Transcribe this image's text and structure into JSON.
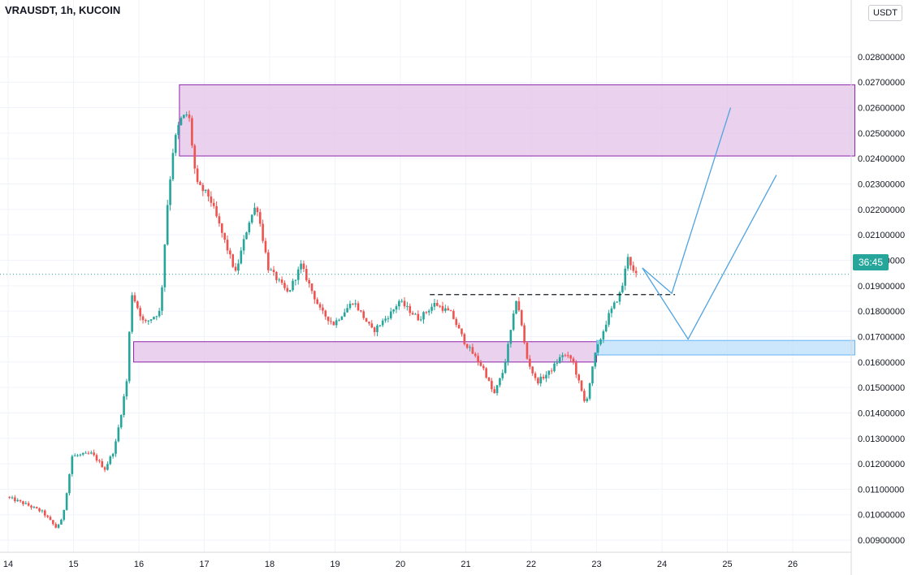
{
  "header": {
    "symbol_line": "VRAUSDT, 1h, KUCOIN"
  },
  "price_scale": {
    "currency": "USDT",
    "countdown": "36:45",
    "current_price": 0.01945
  },
  "colors": {
    "up": "#26a69a",
    "down": "#ef5350",
    "zone_purple_fill": "#e1bee7",
    "zone_purple_stroke": "#8e24aa",
    "zone_blue_fill": "#bbdefb",
    "zone_blue_stroke": "#64b5f6",
    "projection": "#4fa3e0",
    "grid": "#f0f3fa"
  },
  "chart_data": {
    "type": "candlestick",
    "title": "VRAUSDT, 1h, KUCOIN",
    "yaxis": {
      "ticks": [
        "0.00900000",
        "0.01000000",
        "0.01100000",
        "0.01200000",
        "0.01300000",
        "0.01400000",
        "0.01500000",
        "0.01600000",
        "0.01700000",
        "0.01800000",
        "0.01900000",
        "0.02000000",
        "0.02100000",
        "0.02200000",
        "0.02300000",
        "0.02400000",
        "0.02500000",
        "0.02600000",
        "0.02700000",
        "0.02800000"
      ],
      "range": [
        0.0083,
        0.0298
      ]
    },
    "xaxis": {
      "ticks": [
        "14",
        "15",
        "16",
        "17",
        "18",
        "19",
        "20",
        "21",
        "22",
        "23",
        "24",
        "25",
        "26"
      ],
      "range_days": [
        14.0,
        26.95
      ]
    },
    "price_anchors": [
      [
        14.0,
        0.0107
      ],
      [
        14.3,
        0.0104
      ],
      [
        14.55,
        0.0101
      ],
      [
        14.75,
        0.0095
      ],
      [
        14.85,
        0.0098
      ],
      [
        15.0,
        0.0123
      ],
      [
        15.3,
        0.0124
      ],
      [
        15.5,
        0.0118
      ],
      [
        15.65,
        0.0126
      ],
      [
        15.75,
        0.014
      ],
      [
        15.85,
        0.0155
      ],
      [
        15.9,
        0.0188
      ],
      [
        16.1,
        0.0175
      ],
      [
        16.35,
        0.018
      ],
      [
        16.45,
        0.022
      ],
      [
        16.55,
        0.0245
      ],
      [
        16.65,
        0.0255
      ],
      [
        16.78,
        0.0258
      ],
      [
        16.9,
        0.023
      ],
      [
        17.1,
        0.0225
      ],
      [
        17.3,
        0.021
      ],
      [
        17.5,
        0.0195
      ],
      [
        17.7,
        0.0215
      ],
      [
        17.82,
        0.0222
      ],
      [
        18.0,
        0.0197
      ],
      [
        18.3,
        0.0187
      ],
      [
        18.5,
        0.0198
      ],
      [
        18.8,
        0.018
      ],
      [
        19.0,
        0.0175
      ],
      [
        19.3,
        0.0184
      ],
      [
        19.6,
        0.0172
      ],
      [
        19.9,
        0.018
      ],
      [
        20.0,
        0.0184
      ],
      [
        20.3,
        0.0177
      ],
      [
        20.55,
        0.0183
      ],
      [
        20.8,
        0.0179
      ],
      [
        21.0,
        0.0168
      ],
      [
        21.3,
        0.0157
      ],
      [
        21.45,
        0.0147
      ],
      [
        21.6,
        0.0157
      ],
      [
        21.75,
        0.0178
      ],
      [
        21.8,
        0.0186
      ],
      [
        21.95,
        0.0162
      ],
      [
        22.1,
        0.0152
      ],
      [
        22.3,
        0.0156
      ],
      [
        22.5,
        0.0163
      ],
      [
        22.65,
        0.0161
      ],
      [
        22.85,
        0.0143
      ],
      [
        23.0,
        0.0163
      ],
      [
        23.2,
        0.0178
      ],
      [
        23.4,
        0.0188
      ],
      [
        23.5,
        0.0202
      ],
      [
        23.6,
        0.0194
      ]
    ],
    "zones": [
      {
        "name": "supply",
        "from_day": 16.62,
        "to_day": 26.95,
        "low": 0.0241,
        "high": 0.0269
      },
      {
        "name": "demand",
        "from_day": 15.92,
        "to_day": 23.0,
        "low": 0.016,
        "high": 0.0168
      },
      {
        "name": "demand_extension",
        "from_day": 23.0,
        "to_day": 26.95,
        "low": 0.01628,
        "high": 0.01685
      }
    ],
    "resistance_line": {
      "price": 0.01865,
      "from_day": 20.45,
      "to_day": 24.2
    },
    "projections": [
      [
        [
          23.7,
          0.0197
        ],
        [
          24.15,
          0.0187
        ],
        [
          25.05,
          0.026
        ]
      ],
      [
        [
          23.7,
          0.0197
        ],
        [
          24.4,
          0.0169
        ],
        [
          25.75,
          0.02335
        ]
      ]
    ]
  }
}
